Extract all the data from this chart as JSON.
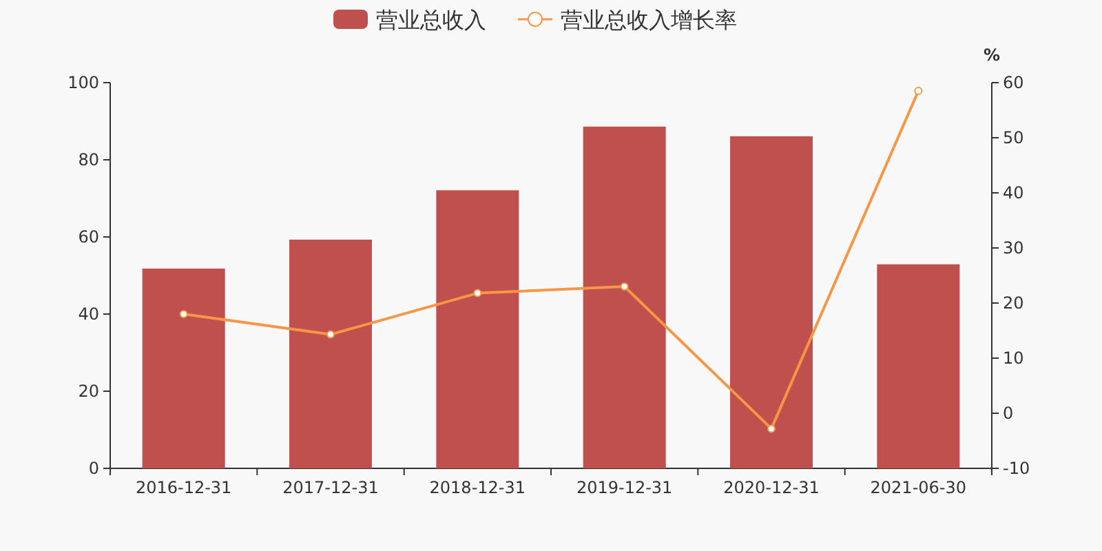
{
  "chart_data": {
    "type": "bar",
    "categories": [
      "2016-12-31",
      "2017-12-31",
      "2018-12-31",
      "2019-12-31",
      "2020-12-31",
      "2021-06-30"
    ],
    "series": [
      {
        "name": "营业总收入",
        "color": "#c0504d",
        "values": [
          51.8,
          59.3,
          72.1,
          88.6,
          86.1,
          52.9
        ]
      },
      {
        "name": "营业总收入增长率",
        "type": "line",
        "axis": "y2",
        "color": "#f79646",
        "marker": "circle",
        "values": [
          18.0,
          14.3,
          21.8,
          23.0,
          -2.8,
          58.5
        ]
      }
    ],
    "ylim": [
      0,
      100
    ],
    "yticks": [
      0,
      20,
      40,
      60,
      80,
      100
    ],
    "y2lim": [
      -10,
      60
    ],
    "y2ticks": [
      -10,
      0,
      10,
      20,
      30,
      40,
      50,
      60
    ],
    "y2label": "%",
    "legend": "top"
  }
}
